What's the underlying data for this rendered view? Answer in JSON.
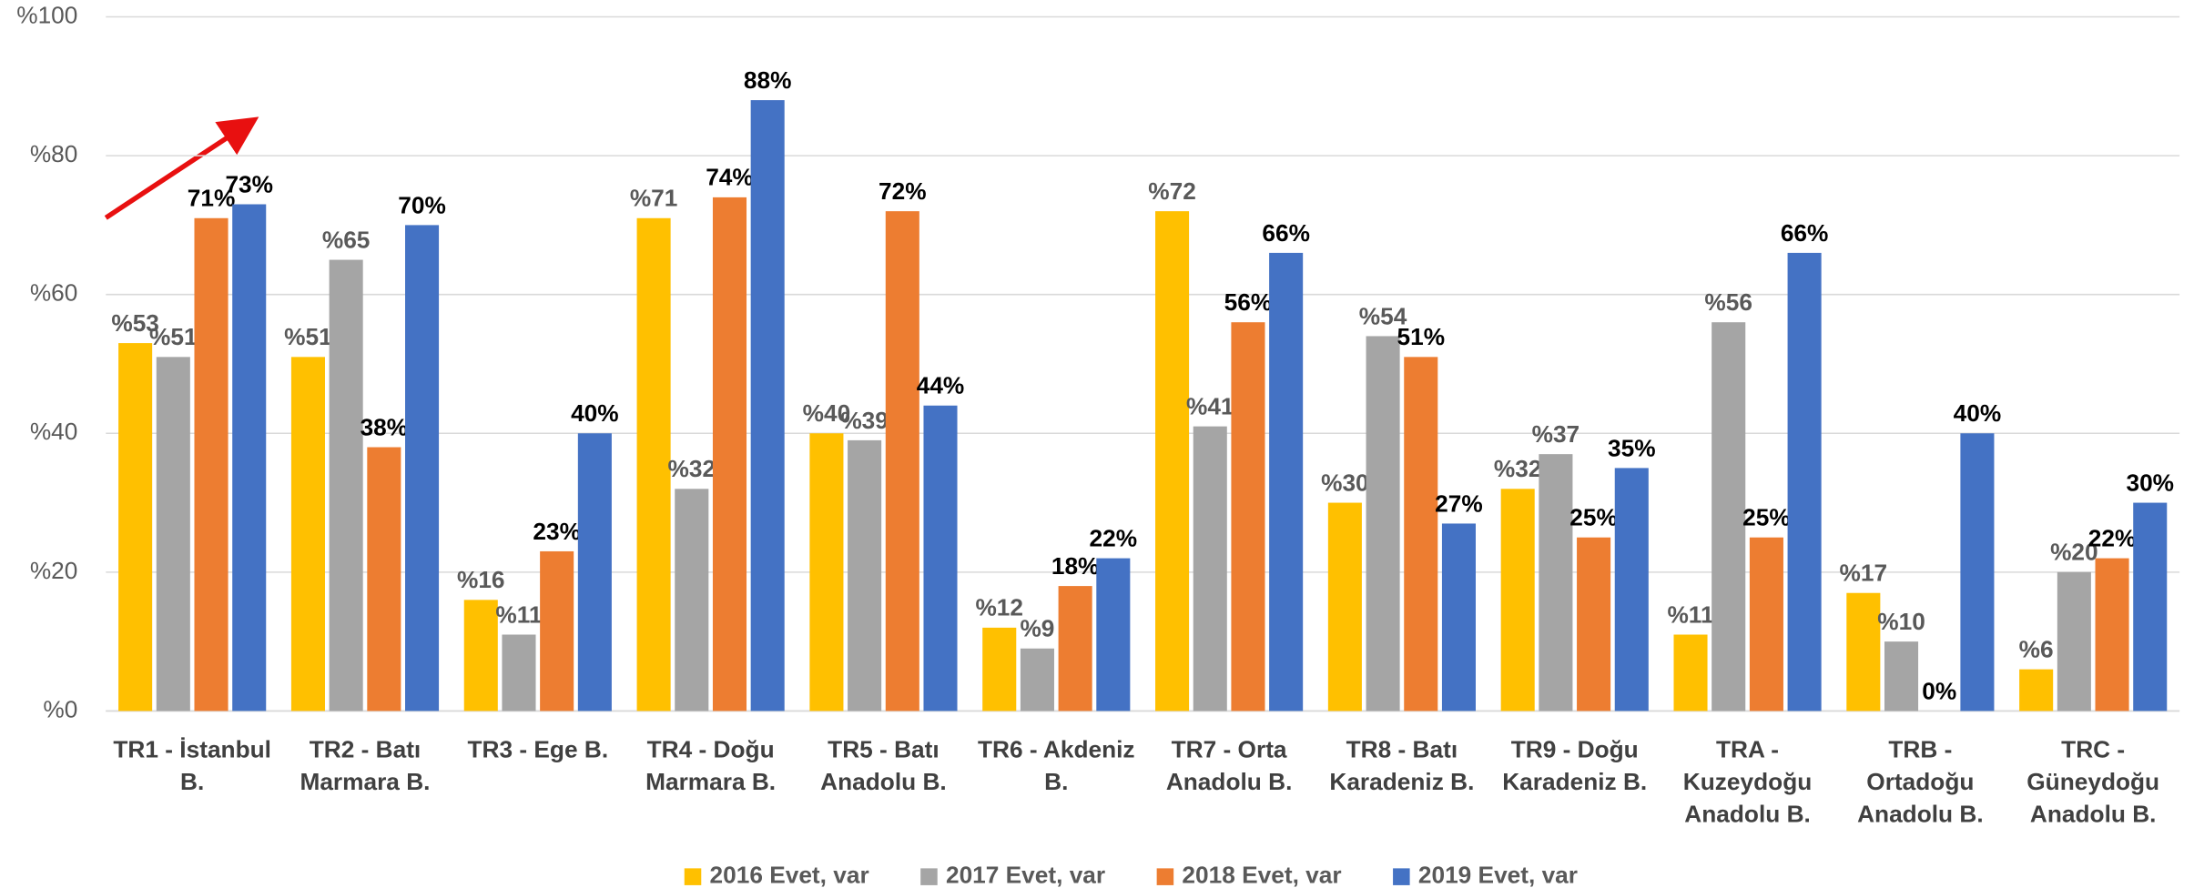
{
  "chart_data": {
    "type": "bar",
    "categories": [
      "TR1 - İstanbul\nB.",
      "TR2 - Batı\nMarmara B.",
      "TR3 - Ege B.",
      "TR4 - Doğu\nMarmara B.",
      "TR5 - Batı\nAnadolu B.",
      "TR6 - Akdeniz\nB.",
      "TR7 - Orta\nAnadolu B.",
      "TR8 - Batı\nKaradeniz B.",
      "TR9 - Doğu\nKaradeniz B.",
      "TRA -\nKuzeydoğu\nAnadolu B.",
      "TRB -\nOrtadoğu\nAnadolu B.",
      "TRC -\nGüneydoğu\nAnadolu B."
    ],
    "series": [
      {
        "name": "2016 Evet, var",
        "color": "#ffc000",
        "values": [
          53,
          51,
          16,
          71,
          40,
          12,
          72,
          30,
          32,
          11,
          17,
          6
        ],
        "value_labels": [
          "%53",
          "%51",
          "%16",
          "%71",
          "%40",
          "%12",
          "%72",
          "%30",
          "%32",
          "%11",
          "%17",
          "%6"
        ]
      },
      {
        "name": "2017 Evet, var",
        "color": "#a5a5a5",
        "values": [
          51,
          65,
          11,
          32,
          39,
          9,
          41,
          54,
          37,
          56,
          10,
          20
        ],
        "value_labels": [
          "%51",
          "%65",
          "%11",
          "%32",
          "%39",
          "%9",
          "%41",
          "%54",
          "%37",
          "%56",
          "%10",
          "%20"
        ]
      },
      {
        "name": "2018 Evet, var",
        "color": "#ed7d31",
        "values": [
          71,
          38,
          23,
          74,
          72,
          18,
          56,
          51,
          25,
          25,
          0,
          22
        ],
        "value_labels": [
          "71%",
          "38%",
          "23%",
          "74%",
          "72%",
          "18%",
          "56%",
          "51%",
          "25%",
          "25%",
          "0%",
          "22%"
        ]
      },
      {
        "name": "2019 Evet, var",
        "color": "#4472c4",
        "values": [
          73,
          70,
          40,
          88,
          44,
          22,
          66,
          27,
          35,
          66,
          40,
          30
        ],
        "value_labels": [
          "73%",
          "70%",
          "40%",
          "88%",
          "44%",
          "22%",
          "66%",
          "27%",
          "35%",
          "66%",
          "40%",
          "30%"
        ]
      }
    ],
    "ylim": [
      0,
      100
    ],
    "yticks": [
      {
        "value": 0,
        "label": "%0"
      },
      {
        "value": 20,
        "label": "%20"
      },
      {
        "value": 40,
        "label": "%40"
      },
      {
        "value": 60,
        "label": "%60"
      },
      {
        "value": 80,
        "label": "%80"
      },
      {
        "value": 100,
        "label": "%100"
      }
    ],
    "grid": true,
    "legend": "bottom"
  }
}
